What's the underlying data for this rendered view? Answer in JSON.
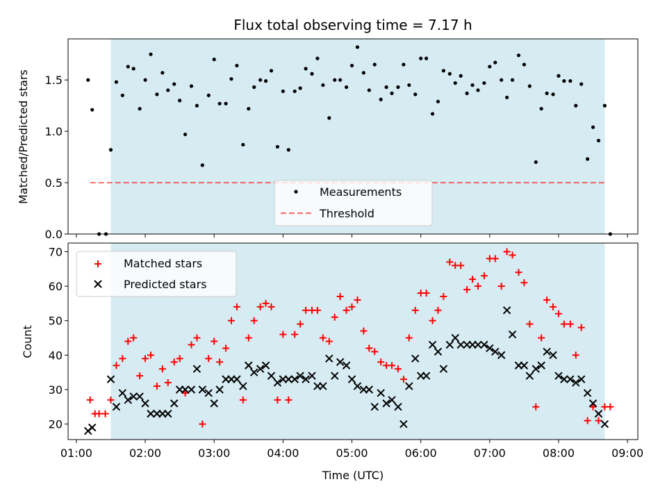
{
  "colors": {
    "span": "#add8e6",
    "matched": "#ff0000",
    "predicted": "#000000",
    "threshold": "#ff0000",
    "measurement": "#000000"
  },
  "chart_data": [
    {
      "type": "scatter",
      "title": "Flux total observing time = 7.17 h",
      "ylabel": "Matched/Predicted stars",
      "xlim": [
        0.88,
        9.15
      ],
      "ylim": [
        0.0,
        1.9
      ],
      "yticks": [
        0.0,
        0.5,
        1.0,
        1.5
      ],
      "ytick_labels": [
        "0.0",
        "0.5",
        "1.0",
        "1.5"
      ],
      "shaded_span": [
        1.5,
        8.67
      ],
      "threshold": {
        "name": "Threshold",
        "y": 0.5,
        "x": [
          1.2,
          8.7
        ]
      },
      "legend": {
        "placement": "lower-center",
        "entries": [
          "Measurements",
          "Threshold"
        ]
      },
      "series": [
        {
          "name": "Measurements",
          "x": [
            1.17,
            1.23,
            1.33,
            1.43,
            1.5,
            1.58,
            1.67,
            1.75,
            1.83,
            1.92,
            2.0,
            2.08,
            2.17,
            2.25,
            2.33,
            2.42,
            2.5,
            2.58,
            2.67,
            2.75,
            2.83,
            2.92,
            3.0,
            3.08,
            3.17,
            3.25,
            3.33,
            3.42,
            3.5,
            3.58,
            3.67,
            3.75,
            3.83,
            3.92,
            4.0,
            4.08,
            4.17,
            4.25,
            4.33,
            4.42,
            4.5,
            4.58,
            4.67,
            4.75,
            4.83,
            4.92,
            5.0,
            5.08,
            5.17,
            5.25,
            5.33,
            5.42,
            5.5,
            5.58,
            5.67,
            5.75,
            5.83,
            5.92,
            6.0,
            6.08,
            6.17,
            6.25,
            6.33,
            6.42,
            6.5,
            6.58,
            6.67,
            6.75,
            6.83,
            6.92,
            7.0,
            7.08,
            7.17,
            7.25,
            7.33,
            7.42,
            7.5,
            7.58,
            7.67,
            7.75,
            7.83,
            7.92,
            8.0,
            8.08,
            8.17,
            8.25,
            8.33,
            8.42,
            8.5,
            8.58,
            8.67,
            8.75
          ],
          "y": [
            1.5,
            1.21,
            0.0,
            0.0,
            0.82,
            1.48,
            1.35,
            1.63,
            1.61,
            1.22,
            1.5,
            1.75,
            1.36,
            1.57,
            1.4,
            1.46,
            1.3,
            0.97,
            1.44,
            1.25,
            0.67,
            1.35,
            1.7,
            1.27,
            1.27,
            1.51,
            1.64,
            0.87,
            1.22,
            1.43,
            1.5,
            1.49,
            1.59,
            0.85,
            1.39,
            0.82,
            1.39,
            1.42,
            1.61,
            1.56,
            1.71,
            1.45,
            1.13,
            1.5,
            1.5,
            1.43,
            1.64,
            1.82,
            1.57,
            1.4,
            1.65,
            1.31,
            1.43,
            1.37,
            1.43,
            1.65,
            1.45,
            1.36,
            1.71,
            1.71,
            1.17,
            1.29,
            1.59,
            1.56,
            1.47,
            1.54,
            1.37,
            1.45,
            1.4,
            1.47,
            1.63,
            1.67,
            1.5,
            1.33,
            1.5,
            1.74,
            1.65,
            1.44,
            0.7,
            1.22,
            1.37,
            1.36,
            1.54,
            1.49,
            1.49,
            1.25,
            1.46,
            0.73,
            1.04,
            0.91,
            1.25,
            0.0
          ]
        }
      ]
    },
    {
      "type": "scatter",
      "title": "",
      "xlabel": "Time (UTC)",
      "ylabel": "Count",
      "xlim": [
        0.88,
        9.15
      ],
      "ylim": [
        15.5,
        72.5
      ],
      "xticks": [
        1,
        2,
        3,
        4,
        5,
        6,
        7,
        8,
        9
      ],
      "xtick_labels": [
        "01:00",
        "02:00",
        "03:00",
        "04:00",
        "05:00",
        "06:00",
        "07:00",
        "08:00",
        "09:00"
      ],
      "yticks": [
        20,
        30,
        40,
        50,
        60,
        70
      ],
      "ytick_labels": [
        "20",
        "30",
        "40",
        "50",
        "60",
        "70"
      ],
      "shaded_span": [
        1.5,
        8.67
      ],
      "legend": {
        "placement": "top-left",
        "entries": [
          "Matched stars",
          "Predicted stars"
        ]
      },
      "series": [
        {
          "name": "Matched stars",
          "marker": "plus",
          "x": [
            1.2,
            1.27,
            1.33,
            1.42,
            1.5,
            1.58,
            1.67,
            1.75,
            1.83,
            1.92,
            2.0,
            2.08,
            2.17,
            2.25,
            2.33,
            2.42,
            2.5,
            2.58,
            2.67,
            2.75,
            2.83,
            2.92,
            3.0,
            3.08,
            3.17,
            3.25,
            3.33,
            3.42,
            3.5,
            3.58,
            3.67,
            3.75,
            3.83,
            3.92,
            4.0,
            4.08,
            4.17,
            4.25,
            4.33,
            4.42,
            4.5,
            4.58,
            4.67,
            4.75,
            4.83,
            4.92,
            5.0,
            5.08,
            5.17,
            5.25,
            5.33,
            5.42,
            5.5,
            5.58,
            5.67,
            5.75,
            5.83,
            5.92,
            6.0,
            6.08,
            6.17,
            6.25,
            6.33,
            6.42,
            6.5,
            6.58,
            6.67,
            6.75,
            6.83,
            6.92,
            7.0,
            7.08,
            7.17,
            7.25,
            7.33,
            7.42,
            7.5,
            7.58,
            7.67,
            7.75,
            7.83,
            7.92,
            8.0,
            8.08,
            8.17,
            8.25,
            8.33,
            8.42,
            8.5,
            8.58,
            8.67,
            8.75
          ],
          "y": [
            27,
            23,
            23,
            23,
            27,
            37,
            39,
            44,
            45,
            34,
            39,
            40,
            31,
            36,
            32,
            38,
            39,
            29,
            43,
            45,
            20,
            39,
            44,
            38,
            42,
            50,
            54,
            27,
            45,
            50,
            54,
            55,
            54,
            27,
            46,
            27,
            46,
            49,
            53,
            53,
            53,
            45,
            44,
            51,
            57,
            53,
            54,
            56,
            47,
            42,
            41,
            38,
            37,
            37,
            36,
            33,
            45,
            53,
            58,
            58,
            50,
            53,
            57,
            67,
            66,
            66,
            59,
            62,
            60,
            63,
            68,
            68,
            60,
            70,
            69,
            64,
            61,
            49,
            25,
            45,
            56,
            54,
            52,
            49,
            49,
            40,
            48,
            21,
            25,
            21,
            25,
            25
          ]
        },
        {
          "name": "Predicted stars",
          "marker": "x",
          "x": [
            1.17,
            1.23,
            1.5,
            1.58,
            1.67,
            1.75,
            1.83,
            1.92,
            2.0,
            2.08,
            2.17,
            2.25,
            2.33,
            2.42,
            2.5,
            2.58,
            2.67,
            2.75,
            2.83,
            2.92,
            3.0,
            3.08,
            3.17,
            3.25,
            3.33,
            3.42,
            3.5,
            3.58,
            3.67,
            3.75,
            3.83,
            3.92,
            4.0,
            4.08,
            4.17,
            4.25,
            4.33,
            4.42,
            4.5,
            4.58,
            4.67,
            4.75,
            4.83,
            4.92,
            5.0,
            5.08,
            5.17,
            5.25,
            5.33,
            5.42,
            5.5,
            5.58,
            5.67,
            5.75,
            5.83,
            5.92,
            6.0,
            6.08,
            6.17,
            6.25,
            6.33,
            6.42,
            6.5,
            6.58,
            6.67,
            6.75,
            6.83,
            6.92,
            7.0,
            7.08,
            7.17,
            7.25,
            7.33,
            7.42,
            7.5,
            7.58,
            7.67,
            7.75,
            7.83,
            7.92,
            8.0,
            8.08,
            8.17,
            8.25,
            8.33,
            8.42,
            8.5,
            8.58,
            8.67
          ],
          "y": [
            18,
            19,
            33,
            25,
            29,
            27,
            28,
            28,
            26,
            23,
            23,
            23,
            23,
            26,
            30,
            30,
            30,
            36,
            30,
            29,
            26,
            30,
            33,
            33,
            33,
            31,
            37,
            35,
            36,
            37,
            34,
            32,
            33,
            33,
            33,
            34,
            33,
            34,
            31,
            31,
            39,
            34,
            38,
            37,
            33,
            31,
            30,
            30,
            25,
            29,
            26,
            27,
            25,
            20,
            31,
            39,
            34,
            34,
            43,
            41,
            36,
            43,
            45,
            43,
            43,
            43,
            43,
            43,
            42,
            41,
            40,
            53,
            46,
            37,
            37,
            34,
            36,
            37,
            41,
            40,
            34,
            33,
            33,
            32,
            33,
            29,
            26,
            23,
            20
          ]
        }
      ]
    }
  ]
}
